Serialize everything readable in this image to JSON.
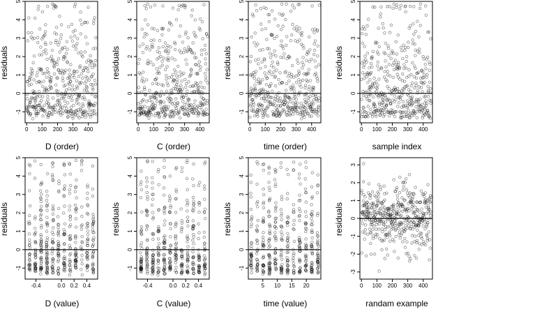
{
  "chart_data": [
    {
      "type": "scatter",
      "panel": "D (order)",
      "xlabel": "D (order)",
      "ylabel": "residuals",
      "xlim": [
        -10,
        460
      ],
      "ylim": [
        -1.6,
        5
      ],
      "xticks": [
        0,
        100,
        200,
        300,
        400
      ],
      "yticks": [
        -1,
        0,
        1,
        2,
        3,
        4,
        5
      ],
      "hline": 0,
      "gen": {
        "kind": "order",
        "seed": 11,
        "n": 450,
        "xmax": 450
      }
    },
    {
      "type": "scatter",
      "panel": "C (order)",
      "xlabel": "C (order)",
      "ylabel": "residuals",
      "xlim": [
        -10,
        460
      ],
      "ylim": [
        -1.6,
        5
      ],
      "xticks": [
        0,
        100,
        200,
        300,
        400
      ],
      "yticks": [
        -1,
        0,
        1,
        2,
        3,
        4,
        5
      ],
      "hline": 0,
      "gen": {
        "kind": "order",
        "seed": 23,
        "n": 450,
        "xmax": 450
      }
    },
    {
      "type": "scatter",
      "panel": "time (order)",
      "xlabel": "time (order)",
      "ylabel": "residuals",
      "xlim": [
        -10,
        460
      ],
      "ylim": [
        -1.6,
        5
      ],
      "xticks": [
        0,
        100,
        200,
        300,
        400
      ],
      "yticks": [
        -1,
        0,
        1,
        2,
        3,
        4,
        5
      ],
      "hline": 0,
      "gen": {
        "kind": "order",
        "seed": 37,
        "n": 450,
        "xmax": 450
      }
    },
    {
      "type": "scatter",
      "panel": "sample index",
      "xlabel": "sample index",
      "ylabel": "residuals",
      "xlim": [
        -10,
        460
      ],
      "ylim": [
        -1.6,
        5
      ],
      "xticks": [
        0,
        100,
        200,
        300,
        400
      ],
      "yticks": [
        -1,
        0,
        1,
        2,
        3,
        4,
        5
      ],
      "hline": 0,
      "gen": {
        "kind": "order",
        "seed": 41,
        "n": 450,
        "xmax": 450
      }
    },
    {
      "type": "scatter",
      "panel": "D (value)",
      "xlabel": "D (value)",
      "ylabel": "residuals",
      "xlim": [
        -0.57,
        0.57
      ],
      "ylim": [
        -1.6,
        5
      ],
      "xticks": [
        -0.4,
        0,
        0.2,
        0.4
      ],
      "xticklabels": [
        "-0.4",
        "0.0",
        "0.2",
        "0.4"
      ],
      "yticks": [
        -1,
        0,
        1,
        2,
        3,
        4,
        5
      ],
      "hline": 0,
      "gen": {
        "kind": "value",
        "seed": 53,
        "n": 450,
        "xmin": -0.5,
        "xmax": 0.5
      }
    },
    {
      "type": "scatter",
      "panel": "C (value)",
      "xlabel": "C (value)",
      "ylabel": "residuals",
      "xlim": [
        -0.57,
        0.57
      ],
      "ylim": [
        -1.6,
        5
      ],
      "xticks": [
        -0.4,
        0,
        0.2,
        0.4
      ],
      "xticklabels": [
        "-0.4",
        "0.0",
        "0.2",
        "0.4"
      ],
      "yticks": [
        -1,
        0,
        1,
        2,
        3,
        4,
        5
      ],
      "hline": 0,
      "gen": {
        "kind": "value",
        "seed": 67,
        "n": 450,
        "xmin": -0.5,
        "xmax": 0.5
      }
    },
    {
      "type": "scatter",
      "panel": "time (value)",
      "xlabel": "time (value)",
      "ylabel": "residuals",
      "xlim": [
        0,
        25
      ],
      "ylim": [
        -1.6,
        5
      ],
      "xticks": [
        5,
        10,
        15,
        20
      ],
      "yticks": [
        -1,
        0,
        1,
        2,
        3,
        4,
        5
      ],
      "hline": 0,
      "gen": {
        "kind": "value",
        "seed": 79,
        "n": 450,
        "xmin": 1,
        "xmax": 24
      }
    },
    {
      "type": "scatter",
      "panel": "randam example",
      "xlabel": "randam example",
      "ylabel": "residuals",
      "xlim": [
        -10,
        460
      ],
      "ylim": [
        -3.4,
        3.4
      ],
      "xticks": [
        0,
        100,
        200,
        300,
        400
      ],
      "yticks": [
        -3,
        -2,
        -1,
        0,
        1,
        2,
        3
      ],
      "hline": 0,
      "gen": {
        "kind": "normal",
        "seed": 97,
        "n": 450,
        "xmax": 450
      }
    }
  ]
}
